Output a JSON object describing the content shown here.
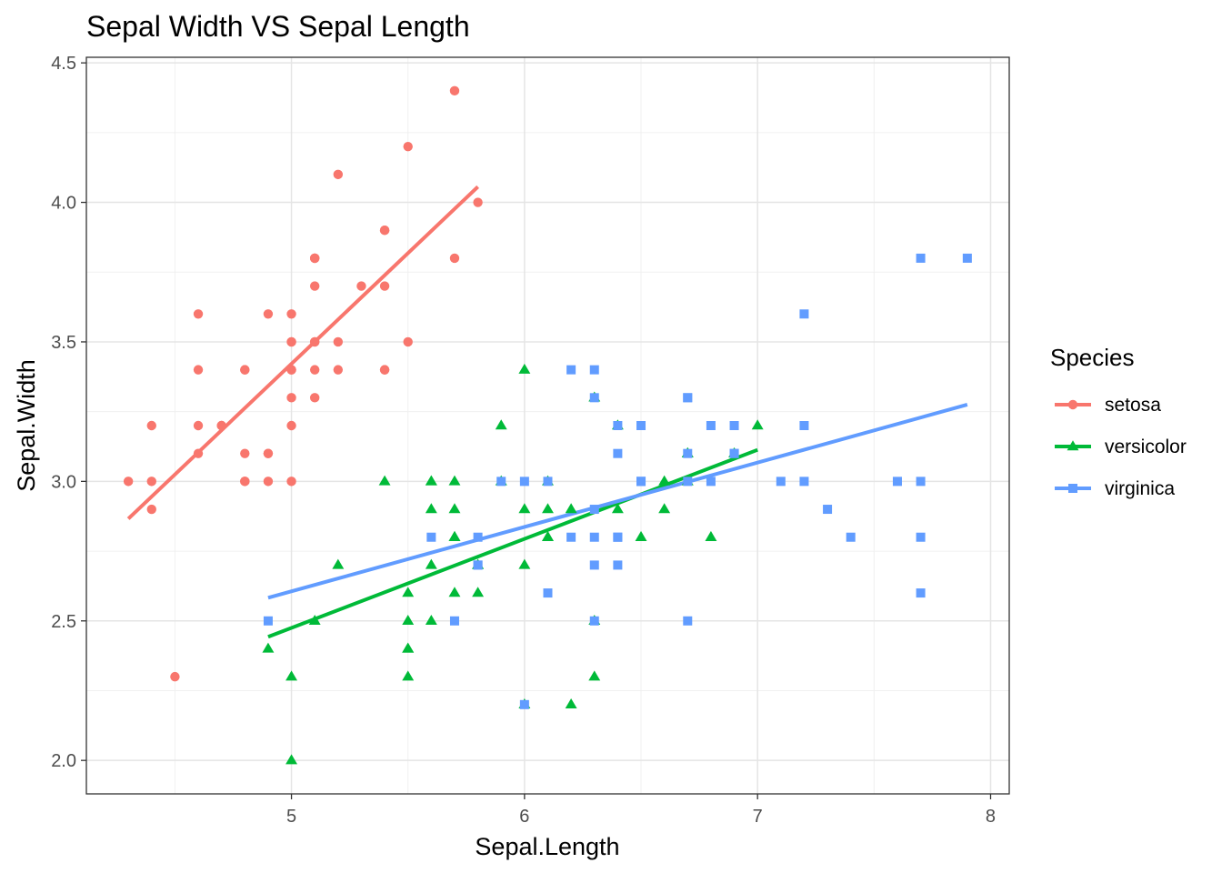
{
  "chart_data": {
    "type": "scatter",
    "title": "Sepal Width VS Sepal Length",
    "xlabel": "Sepal.Length",
    "ylabel": "Sepal.Width",
    "xlim": [
      4.12,
      8.08
    ],
    "ylim": [
      1.88,
      4.52
    ],
    "xticks": [
      5,
      6,
      7,
      8
    ],
    "xtick_labels": [
      "5",
      "6",
      "7",
      "8"
    ],
    "yticks": [
      2.0,
      2.5,
      3.0,
      3.5,
      4.0,
      4.5
    ],
    "ytick_labels": [
      "2.0",
      "2.5",
      "3.0",
      "3.5",
      "4.0",
      "4.5"
    ],
    "grid": true,
    "legend": {
      "title": "Species",
      "position": "right"
    },
    "series": [
      {
        "name": "setosa",
        "color": "#F8766D",
        "marker": "circle",
        "points": [
          [
            5.1,
            3.5
          ],
          [
            4.9,
            3.0
          ],
          [
            4.7,
            3.2
          ],
          [
            4.6,
            3.1
          ],
          [
            5.0,
            3.6
          ],
          [
            5.4,
            3.9
          ],
          [
            4.6,
            3.4
          ],
          [
            5.0,
            3.4
          ],
          [
            4.4,
            2.9
          ],
          [
            4.9,
            3.1
          ],
          [
            5.4,
            3.7
          ],
          [
            4.8,
            3.4
          ],
          [
            4.8,
            3.0
          ],
          [
            4.3,
            3.0
          ],
          [
            5.8,
            4.0
          ],
          [
            5.7,
            4.4
          ],
          [
            5.4,
            3.9
          ],
          [
            5.1,
            3.5
          ],
          [
            5.7,
            3.8
          ],
          [
            5.1,
            3.8
          ],
          [
            5.4,
            3.4
          ],
          [
            5.1,
            3.7
          ],
          [
            4.6,
            3.6
          ],
          [
            5.1,
            3.3
          ],
          [
            4.8,
            3.4
          ],
          [
            5.0,
            3.0
          ],
          [
            5.0,
            3.4
          ],
          [
            5.2,
            3.5
          ],
          [
            5.2,
            3.4
          ],
          [
            4.7,
            3.2
          ],
          [
            4.8,
            3.1
          ],
          [
            5.4,
            3.4
          ],
          [
            5.2,
            4.1
          ],
          [
            5.5,
            4.2
          ],
          [
            4.9,
            3.1
          ],
          [
            5.0,
            3.2
          ],
          [
            5.5,
            3.5
          ],
          [
            4.9,
            3.6
          ],
          [
            4.4,
            3.0
          ],
          [
            5.1,
            3.4
          ],
          [
            5.0,
            3.5
          ],
          [
            4.5,
            2.3
          ],
          [
            4.4,
            3.2
          ],
          [
            5.0,
            3.5
          ],
          [
            5.1,
            3.8
          ],
          [
            4.8,
            3.0
          ],
          [
            5.1,
            3.8
          ],
          [
            4.6,
            3.2
          ],
          [
            5.3,
            3.7
          ],
          [
            5.0,
            3.3
          ]
        ],
        "fit": {
          "x": [
            4.3,
            5.8
          ],
          "y": [
            2.866,
            4.056
          ]
        }
      },
      {
        "name": "versicolor",
        "color": "#00BA38",
        "marker": "triangle",
        "points": [
          [
            7.0,
            3.2
          ],
          [
            6.4,
            3.2
          ],
          [
            6.9,
            3.1
          ],
          [
            5.5,
            2.3
          ],
          [
            6.5,
            2.8
          ],
          [
            5.7,
            2.8
          ],
          [
            6.3,
            3.3
          ],
          [
            4.9,
            2.4
          ],
          [
            6.6,
            2.9
          ],
          [
            5.2,
            2.7
          ],
          [
            5.0,
            2.0
          ],
          [
            5.9,
            3.0
          ],
          [
            6.0,
            2.2
          ],
          [
            6.1,
            2.9
          ],
          [
            5.6,
            2.9
          ],
          [
            6.7,
            3.1
          ],
          [
            5.6,
            3.0
          ],
          [
            5.8,
            2.7
          ],
          [
            6.2,
            2.2
          ],
          [
            5.6,
            2.5
          ],
          [
            5.9,
            3.2
          ],
          [
            6.1,
            2.8
          ],
          [
            6.3,
            2.5
          ],
          [
            6.1,
            2.8
          ],
          [
            6.4,
            2.9
          ],
          [
            6.6,
            3.0
          ],
          [
            6.8,
            2.8
          ],
          [
            6.7,
            3.0
          ],
          [
            6.0,
            2.9
          ],
          [
            5.7,
            2.6
          ],
          [
            5.5,
            2.4
          ],
          [
            5.5,
            2.4
          ],
          [
            5.8,
            2.7
          ],
          [
            6.0,
            2.7
          ],
          [
            5.4,
            3.0
          ],
          [
            6.0,
            3.4
          ],
          [
            6.7,
            3.1
          ],
          [
            6.3,
            2.3
          ],
          [
            5.6,
            3.0
          ],
          [
            5.5,
            2.5
          ],
          [
            5.5,
            2.6
          ],
          [
            6.1,
            3.0
          ],
          [
            5.8,
            2.6
          ],
          [
            5.0,
            2.3
          ],
          [
            5.6,
            2.7
          ],
          [
            5.7,
            3.0
          ],
          [
            5.7,
            2.9
          ],
          [
            6.2,
            2.9
          ],
          [
            5.1,
            2.5
          ],
          [
            5.7,
            2.8
          ]
        ],
        "fit": {
          "x": [
            4.9,
            7.0
          ],
          "y": [
            2.443,
            3.113
          ]
        }
      },
      {
        "name": "virginica",
        "color": "#619CFF",
        "marker": "square",
        "points": [
          [
            6.3,
            3.3
          ],
          [
            5.8,
            2.7
          ],
          [
            7.1,
            3.0
          ],
          [
            6.3,
            2.9
          ],
          [
            6.5,
            3.0
          ],
          [
            7.6,
            3.0
          ],
          [
            4.9,
            2.5
          ],
          [
            7.3,
            2.9
          ],
          [
            6.7,
            2.5
          ],
          [
            7.2,
            3.6
          ],
          [
            6.5,
            3.2
          ],
          [
            6.4,
            2.7
          ],
          [
            6.8,
            3.0
          ],
          [
            5.7,
            2.5
          ],
          [
            5.8,
            2.8
          ],
          [
            6.4,
            3.2
          ],
          [
            6.5,
            3.0
          ],
          [
            7.7,
            3.8
          ],
          [
            7.7,
            2.6
          ],
          [
            6.0,
            2.2
          ],
          [
            6.9,
            3.2
          ],
          [
            5.6,
            2.8
          ],
          [
            7.7,
            2.8
          ],
          [
            6.3,
            2.7
          ],
          [
            6.7,
            3.3
          ],
          [
            7.2,
            3.2
          ],
          [
            6.2,
            2.8
          ],
          [
            6.1,
            3.0
          ],
          [
            6.4,
            2.8
          ],
          [
            7.2,
            3.0
          ],
          [
            7.4,
            2.8
          ],
          [
            7.9,
            3.8
          ],
          [
            6.4,
            2.8
          ],
          [
            6.3,
            2.8
          ],
          [
            6.1,
            2.6
          ],
          [
            7.7,
            3.0
          ],
          [
            6.3,
            3.4
          ],
          [
            6.4,
            3.1
          ],
          [
            6.0,
            3.0
          ],
          [
            6.9,
            3.1
          ],
          [
            6.7,
            3.1
          ],
          [
            6.9,
            3.1
          ],
          [
            5.8,
            2.7
          ],
          [
            6.8,
            3.2
          ],
          [
            6.7,
            3.3
          ],
          [
            6.7,
            3.0
          ],
          [
            6.3,
            2.5
          ],
          [
            6.5,
            3.0
          ],
          [
            6.2,
            3.4
          ],
          [
            5.9,
            3.0
          ]
        ],
        "fit": {
          "x": [
            4.9,
            7.9
          ],
          "y": [
            2.583,
            3.275
          ]
        }
      }
    ]
  }
}
